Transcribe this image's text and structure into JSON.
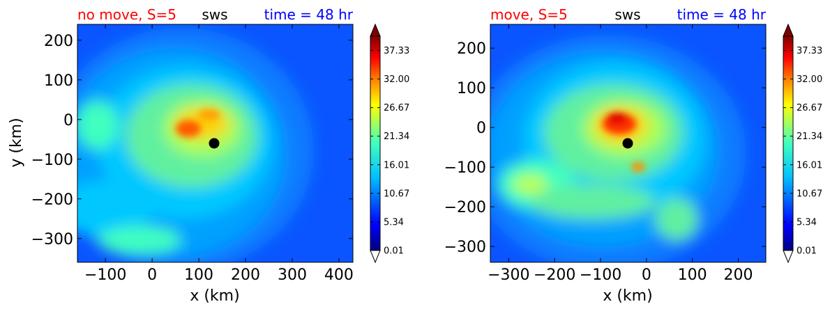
{
  "chart_data": [
    {
      "type": "heatmap",
      "title_left": "no move, S=5",
      "title_center": "sws",
      "title_right": "time = 48 hr",
      "title_left_color": "#ff0000",
      "title_center_color": "#000000",
      "title_right_color": "#0000ff",
      "xlabel": "x (km)",
      "ylabel": "y (km)",
      "xlim": [
        -160,
        430
      ],
      "ylim": [
        -360,
        240
      ],
      "xticks": [
        -100,
        0,
        100,
        200,
        300,
        400
      ],
      "xtick_labels": [
        "−100",
        "0",
        "100",
        "200",
        "300",
        "400"
      ],
      "yticks": [
        200,
        100,
        0,
        -100,
        -200,
        -300
      ],
      "ytick_labels": [
        "200",
        "100",
        "0",
        "−100",
        "−200",
        "−300"
      ],
      "center_marker": {
        "x": 130,
        "y": -60
      },
      "colorbar": {
        "min": 0.01,
        "max": 40,
        "extend": "both",
        "ticks": [
          0.01,
          5.34,
          10.67,
          16.01,
          21.34,
          26.67,
          32.0,
          37.33
        ],
        "tick_labels": [
          "0.01",
          "5.34",
          "10.67",
          "16.01",
          "21.34",
          "26.67",
          "32.00",
          "37.33"
        ]
      }
    },
    {
      "type": "heatmap",
      "title_left": "move, S=5",
      "title_center": "sws",
      "title_right": "time = 48 hr",
      "title_left_color": "#ff0000",
      "title_center_color": "#000000",
      "title_right_color": "#0000ff",
      "xlabel": "x (km)",
      "ylabel": "",
      "xlim": [
        -340,
        260
      ],
      "ylim": [
        -340,
        260
      ],
      "xticks": [
        -300,
        -200,
        -100,
        0,
        100,
        200
      ],
      "xtick_labels": [
        "−300",
        "−200",
        "−100",
        "0",
        "100",
        "200"
      ],
      "yticks": [
        200,
        100,
        0,
        -100,
        -200,
        -300
      ],
      "ytick_labels": [
        "200",
        "100",
        "0",
        "−100",
        "−200",
        "−300"
      ],
      "center_marker": {
        "x": -35,
        "y": -35
      },
      "colorbar": {
        "min": 0.01,
        "max": 40,
        "extend": "both",
        "ticks": [
          0.01,
          5.34,
          10.67,
          16.01,
          21.34,
          26.67,
          32.0,
          37.33
        ],
        "tick_labels": [
          "0.01",
          "5.34",
          "10.67",
          "16.01",
          "21.34",
          "26.67",
          "32.00",
          "37.33"
        ]
      }
    }
  ],
  "colors": {
    "jet_stops": [
      "#00007f",
      "#0000ff",
      "#007fff",
      "#00ffff",
      "#7fff7f",
      "#ffff00",
      "#ff7f00",
      "#ff0000",
      "#7f0000"
    ],
    "background_field": "#0a55ff"
  }
}
